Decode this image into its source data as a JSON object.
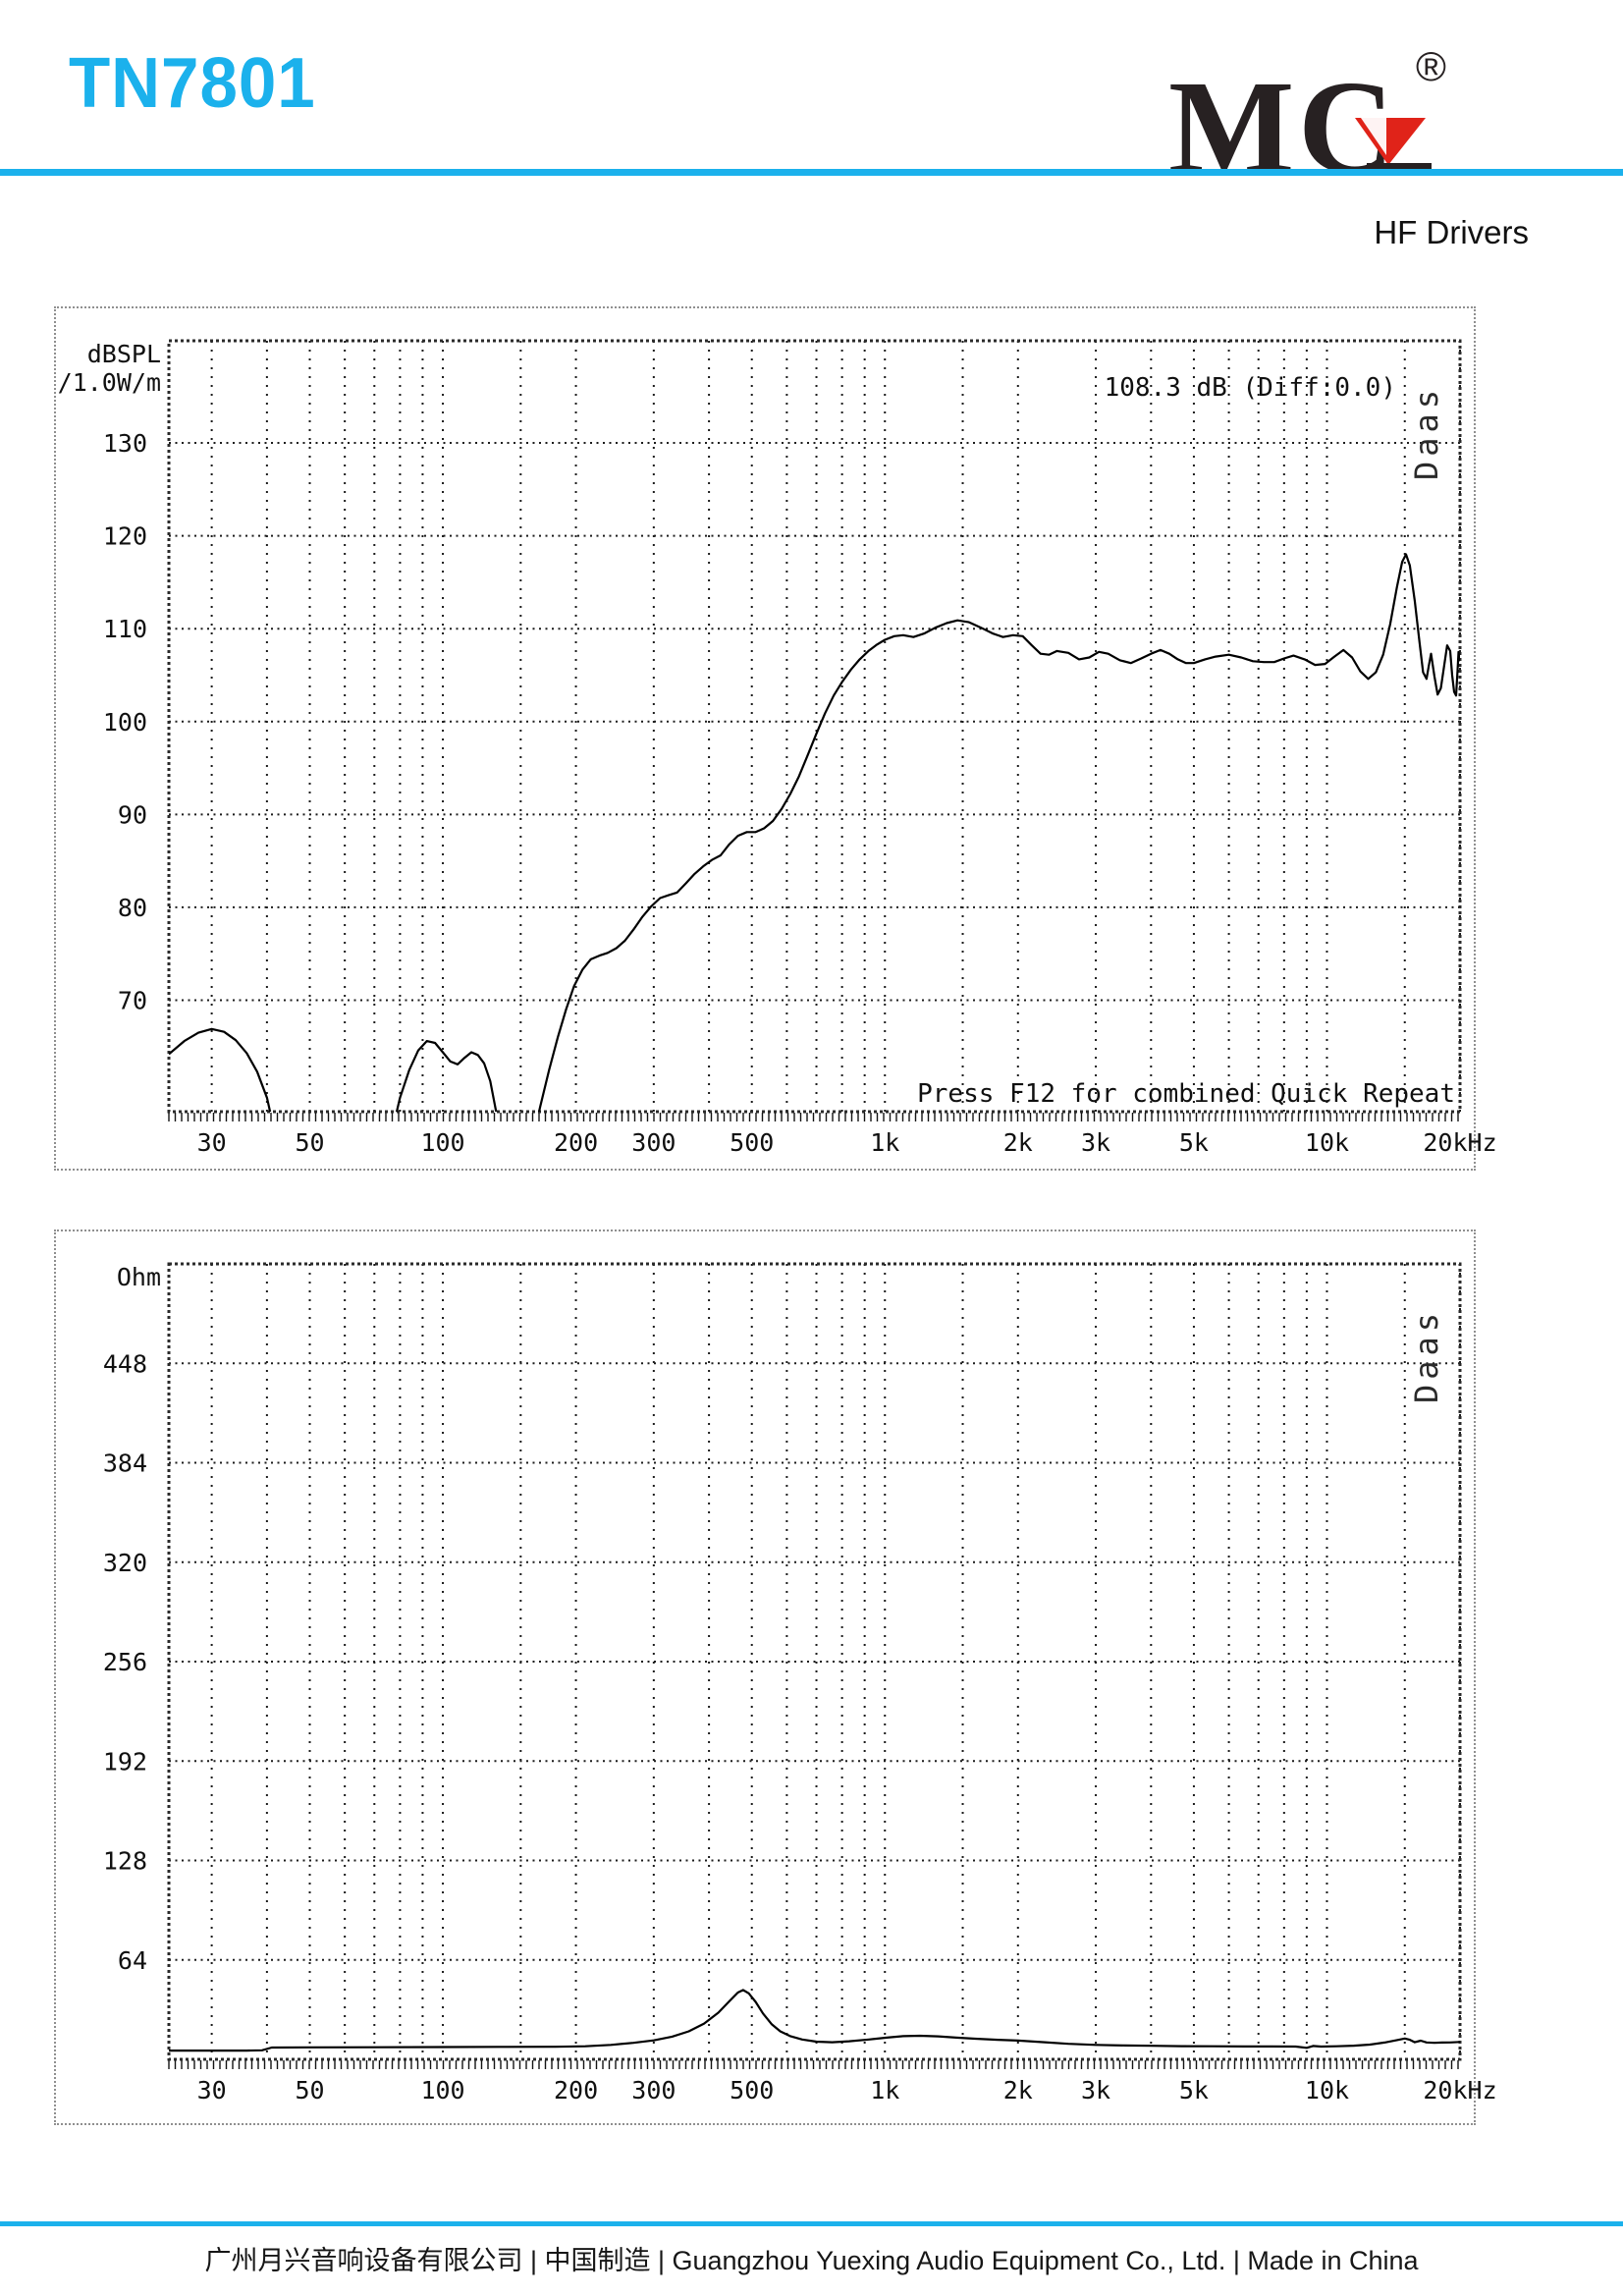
{
  "page": {
    "title": "TN7801",
    "subtitle": "HF Drivers",
    "footer_text": "广州月兴音响设备有限公司 | 中国制造 | Guangzhou Yuexing Audio Equipment Co., Ltd. | Made in China",
    "logo": {
      "m": "M",
      "c": "C",
      "reg": "®"
    }
  },
  "colors": {
    "accent": "#1bb1ec",
    "logo_black": "#272122",
    "logo_red": "#e02319",
    "ink": "#101010"
  },
  "chart_data": [
    {
      "type": "line",
      "name": "frequency-response-spl",
      "x_scale": "log",
      "x_range": [
        24,
        20000
      ],
      "y_range": [
        58,
        141
      ],
      "grid": true,
      "x_grid_steps": [
        1,
        1.5,
        2,
        3,
        4,
        5,
        6,
        7,
        8,
        9
      ],
      "y_axis_title_lines": [
        "dBSPL",
        "/1.0W/m"
      ],
      "y_ticks": [
        130,
        120,
        110,
        100,
        90,
        80,
        70
      ],
      "x_ticks": [
        {
          "f": 30,
          "label": "30"
        },
        {
          "f": 50,
          "label": "50"
        },
        {
          "f": 100,
          "label": "100"
        },
        {
          "f": 200,
          "label": "200"
        },
        {
          "f": 300,
          "label": "300"
        },
        {
          "f": 500,
          "label": "500"
        },
        {
          "f": 1000,
          "label": "1k"
        },
        {
          "f": 2000,
          "label": "2k"
        },
        {
          "f": 3000,
          "label": "3k"
        },
        {
          "f": 5000,
          "label": "5k"
        },
        {
          "f": 10000,
          "label": "10k"
        },
        {
          "f": 20000,
          "label": "20kHz"
        }
      ],
      "annotations": {
        "readout": "108.3 dB (Diff:0.0)",
        "footnote": "Press F12 for combined Quick Repeat",
        "watermark": "Daas"
      },
      "series": [
        {
          "name": "SPL",
          "points": [
            [
              24,
              64.2
            ],
            [
              26,
              65.6
            ],
            [
              28,
              66.5
            ],
            [
              30,
              66.9
            ],
            [
              32,
              66.6
            ],
            [
              34,
              65.7
            ],
            [
              36,
              64.3
            ],
            [
              38,
              62.3
            ],
            [
              40,
              59.5
            ],
            [
              42,
              55
            ],
            [
              44,
              50
            ],
            [
              70,
              50
            ],
            [
              76,
              55
            ],
            [
              80,
              59.5
            ],
            [
              84,
              62.5
            ],
            [
              88,
              64.6
            ],
            [
              92,
              65.6
            ],
            [
              96,
              65.4
            ],
            [
              100,
              64.4
            ],
            [
              104,
              63.4
            ],
            [
              108,
              63.1
            ],
            [
              112,
              63.8
            ],
            [
              116,
              64.4
            ],
            [
              120,
              64.1
            ],
            [
              124,
              63.2
            ],
            [
              128,
              61.3
            ],
            [
              132,
              58
            ],
            [
              136,
              53
            ],
            [
              140,
              50
            ],
            [
              150,
              50
            ],
            [
              158,
              54
            ],
            [
              166,
              58.5
            ],
            [
              174,
              62.5
            ],
            [
              182,
              66
            ],
            [
              190,
              69
            ],
            [
              198,
              71.5
            ],
            [
              207,
              73.3
            ],
            [
              216,
              74.4
            ],
            [
              226,
              74.8
            ],
            [
              236,
              75.1
            ],
            [
              247,
              75.6
            ],
            [
              258,
              76.4
            ],
            [
              270,
              77.6
            ],
            [
              283,
              79
            ],
            [
              296,
              80.1
            ],
            [
              310,
              81
            ],
            [
              324,
              81.3
            ],
            [
              339,
              81.6
            ],
            [
              355,
              82.6
            ],
            [
              371,
              83.6
            ],
            [
              388,
              84.4
            ],
            [
              406,
              85.1
            ],
            [
              425,
              85.6
            ],
            [
              445,
              86.8
            ],
            [
              465,
              87.7
            ],
            [
              487,
              88.1
            ],
            [
              510,
              88.1
            ],
            [
              533,
              88.5
            ],
            [
              558,
              89.3
            ],
            [
              584,
              90.6
            ],
            [
              611,
              92.2
            ],
            [
              639,
              94.1
            ],
            [
              669,
              96.4
            ],
            [
              700,
              98.7
            ],
            [
              732,
              100.9
            ],
            [
              766,
              102.8
            ],
            [
              801,
              104.3
            ],
            [
              838,
              105.6
            ],
            [
              877,
              106.7
            ],
            [
              918,
              107.6
            ],
            [
              960,
              108.3
            ],
            [
              1000,
              108.8
            ],
            [
              1050,
              109.2
            ],
            [
              1100,
              109.3
            ],
            [
              1160,
              109.1
            ],
            [
              1230,
              109.5
            ],
            [
              1300,
              110.1
            ],
            [
              1380,
              110.6
            ],
            [
              1460,
              110.9
            ],
            [
              1550,
              110.7
            ],
            [
              1650,
              110.1
            ],
            [
              1750,
              109.5
            ],
            [
              1850,
              109.1
            ],
            [
              1950,
              109.3
            ],
            [
              2050,
              109.2
            ],
            [
              2150,
              108.2
            ],
            [
              2250,
              107.3
            ],
            [
              2350,
              107.2
            ],
            [
              2450,
              107.6
            ],
            [
              2600,
              107.4
            ],
            [
              2750,
              106.7
            ],
            [
              2900,
              106.9
            ],
            [
              3050,
              107.5
            ],
            [
              3200,
              107.3
            ],
            [
              3400,
              106.6
            ],
            [
              3600,
              106.3
            ],
            [
              3800,
              106.8
            ],
            [
              4000,
              107.3
            ],
            [
              4200,
              107.7
            ],
            [
              4400,
              107.3
            ],
            [
              4600,
              106.7
            ],
            [
              4800,
              106.3
            ],
            [
              5000,
              106.3
            ],
            [
              5300,
              106.7
            ],
            [
              5600,
              107
            ],
            [
              6000,
              107.2
            ],
            [
              6400,
              106.9
            ],
            [
              6800,
              106.5
            ],
            [
              7200,
              106.4
            ],
            [
              7600,
              106.4
            ],
            [
              8000,
              106.8
            ],
            [
              8400,
              107.1
            ],
            [
              8900,
              106.7
            ],
            [
              9400,
              106.1
            ],
            [
              9900,
              106.2
            ],
            [
              10400,
              107
            ],
            [
              10900,
              107.7
            ],
            [
              11400,
              106.9
            ],
            [
              11900,
              105.4
            ],
            [
              12400,
              104.6
            ],
            [
              12900,
              105.3
            ],
            [
              13400,
              107.2
            ],
            [
              13900,
              110.5
            ],
            [
              14400,
              114.5
            ],
            [
              14800,
              117.2
            ],
            [
              15100,
              118
            ],
            [
              15400,
              116.8
            ],
            [
              15800,
              113
            ],
            [
              16200,
              108.5
            ],
            [
              16500,
              105.3
            ],
            [
              16800,
              104.6
            ],
            [
              17000,
              106
            ],
            [
              17200,
              107.3
            ],
            [
              17500,
              104.9
            ],
            [
              17800,
              102.9
            ],
            [
              18100,
              103.6
            ],
            [
              18400,
              105.9
            ],
            [
              18700,
              108.2
            ],
            [
              19000,
              107.6
            ],
            [
              19200,
              105
            ],
            [
              19400,
              103.2
            ],
            [
              19600,
              102.8
            ],
            [
              19750,
              105.5
            ],
            [
              19850,
              107.5
            ],
            [
              20000,
              106.5
            ]
          ]
        }
      ]
    },
    {
      "type": "line",
      "name": "impedance",
      "x_scale": "log",
      "x_range": [
        24,
        20000
      ],
      "y_range": [
        0,
        512
      ],
      "grid": true,
      "x_grid_steps": [
        1,
        1.5,
        2,
        3,
        4,
        5,
        6,
        7,
        8,
        9
      ],
      "y_axis_title_lines": [
        "Ohm"
      ],
      "y_ticks": [
        448,
        384,
        320,
        256,
        192,
        128,
        64
      ],
      "x_ticks": [
        {
          "f": 30,
          "label": "30"
        },
        {
          "f": 50,
          "label": "50"
        },
        {
          "f": 100,
          "label": "100"
        },
        {
          "f": 200,
          "label": "200"
        },
        {
          "f": 300,
          "label": "300"
        },
        {
          "f": 500,
          "label": "500"
        },
        {
          "f": 1000,
          "label": "1k"
        },
        {
          "f": 2000,
          "label": "2k"
        },
        {
          "f": 3000,
          "label": "3k"
        },
        {
          "f": 5000,
          "label": "5k"
        },
        {
          "f": 10000,
          "label": "10k"
        },
        {
          "f": 20000,
          "label": "20kHz"
        }
      ],
      "annotations": {
        "watermark": "Daas"
      },
      "series": [
        {
          "name": "Impedance",
          "points": [
            [
              24,
              5.6
            ],
            [
              30,
              5.6
            ],
            [
              36,
              5.6
            ],
            [
              39,
              5.8
            ],
            [
              41,
              7.6
            ],
            [
              50,
              7.7
            ],
            [
              70,
              7.8
            ],
            [
              100,
              7.9
            ],
            [
              140,
              8
            ],
            [
              180,
              8.1
            ],
            [
              210,
              8.4
            ],
            [
              240,
              9.3
            ],
            [
              270,
              10.6
            ],
            [
              300,
              12.2
            ],
            [
              330,
              14.6
            ],
            [
              360,
              18
            ],
            [
              390,
              23
            ],
            [
              420,
              30
            ],
            [
              445,
              37.5
            ],
            [
              465,
              43
            ],
            [
              478,
              44.6
            ],
            [
              492,
              42.5
            ],
            [
              510,
              37
            ],
            [
              530,
              29.5
            ],
            [
              555,
              22.5
            ],
            [
              580,
              18
            ],
            [
              610,
              15
            ],
            [
              650,
              12.8
            ],
            [
              700,
              11.4
            ],
            [
              760,
              11
            ],
            [
              830,
              11.6
            ],
            [
              920,
              12.8
            ],
            [
              1010,
              14
            ],
            [
              1100,
              14.9
            ],
            [
              1200,
              15.2
            ],
            [
              1320,
              14.8
            ],
            [
              1450,
              14
            ],
            [
              1600,
              13.3
            ],
            [
              1800,
              12.6
            ],
            [
              2000,
              12.1
            ],
            [
              2300,
              11
            ],
            [
              2600,
              10
            ],
            [
              3000,
              9.3
            ],
            [
              3500,
              8.9
            ],
            [
              4000,
              8.7
            ],
            [
              4700,
              8.5
            ],
            [
              5500,
              8.4
            ],
            [
              6500,
              8.3
            ],
            [
              7500,
              8.3
            ],
            [
              8500,
              8.2
            ],
            [
              9000,
              7.4
            ],
            [
              9300,
              8.6
            ],
            [
              9700,
              8.2
            ],
            [
              10500,
              8.4
            ],
            [
              11500,
              8.8
            ],
            [
              12500,
              9.5
            ],
            [
              13500,
              10.8
            ],
            [
              14400,
              12.4
            ],
            [
              15000,
              13.4
            ],
            [
              15400,
              12.6
            ],
            [
              15800,
              11
            ],
            [
              16300,
              12
            ],
            [
              16800,
              10.9
            ],
            [
              17500,
              10.6
            ],
            [
              18200,
              10.8
            ],
            [
              19000,
              10.9
            ],
            [
              20000,
              11.2
            ]
          ]
        }
      ]
    }
  ]
}
